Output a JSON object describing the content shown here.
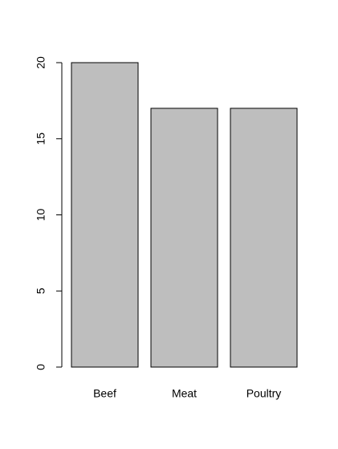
{
  "chart_data": {
    "type": "bar",
    "categories": [
      "Beef",
      "Meat",
      "Poultry"
    ],
    "values": [
      20,
      17,
      17
    ],
    "color": "#bebebe",
    "ylim": [
      0,
      20
    ],
    "yticks": [
      0,
      5,
      10,
      15,
      20
    ],
    "grid": false
  }
}
